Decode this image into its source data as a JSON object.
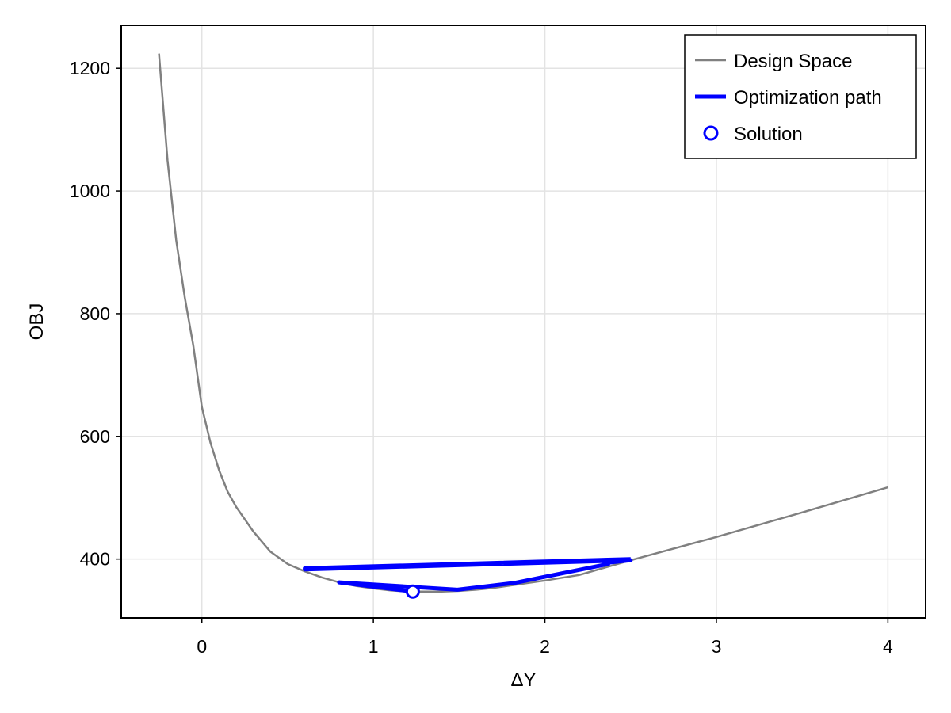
{
  "chart_data": {
    "type": "line",
    "xlabel": "ΔY",
    "ylabel": "OBJ",
    "xlim": [
      -0.47,
      4.22
    ],
    "ylim": [
      304,
      1270
    ],
    "xticks": [
      0,
      1,
      2,
      3,
      4
    ],
    "yticks": [
      400,
      600,
      800,
      1000,
      1200
    ],
    "grid": true,
    "legend_position": "top-right",
    "series": [
      {
        "name": "Design Space",
        "kind": "line",
        "color": "#808080",
        "x": [
          -0.25,
          -0.2,
          -0.15,
          -0.1,
          -0.05,
          0.0,
          0.05,
          0.1,
          0.15,
          0.2,
          0.3,
          0.4,
          0.5,
          0.6,
          0.7,
          0.8,
          0.9,
          1.0,
          1.1,
          1.2,
          1.3,
          1.4,
          1.5,
          1.6,
          1.7,
          1.8,
          2.0,
          2.2,
          2.5,
          3.0,
          3.5,
          4.0
        ],
        "y": [
          1224,
          1050,
          920,
          827,
          748,
          648,
          590,
          545,
          510,
          485,
          445,
          412,
          392,
          380,
          370,
          362,
          356,
          352,
          349,
          347,
          347,
          347,
          348,
          350,
          353,
          357,
          365,
          374,
          398,
          436,
          476,
          517
        ]
      },
      {
        "name": "Optimization path",
        "kind": "line",
        "color": "#0000ff",
        "x": [
          2.5,
          0.6,
          0.6,
          2.5,
          2.37,
          2.37,
          1.82,
          1.49,
          0.8,
          1.23
        ],
        "y": [
          400,
          385,
          383,
          398,
          394,
          392,
          361,
          350,
          362,
          347
        ]
      },
      {
        "name": "Solution",
        "kind": "point",
        "color": "#0000ff",
        "x": [
          1.23
        ],
        "y": [
          347
        ]
      }
    ]
  }
}
